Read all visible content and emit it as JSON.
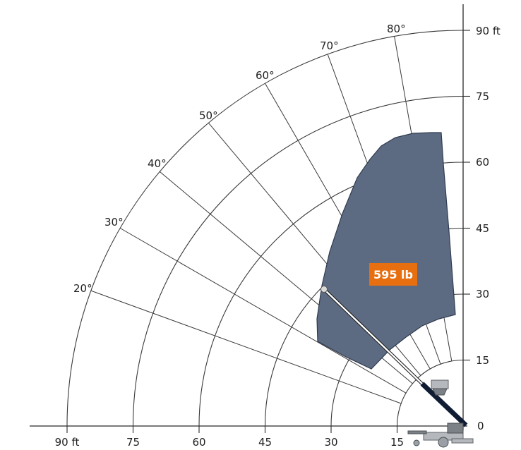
{
  "diagram": {
    "load_label": "595 lb",
    "radius_unit_label": "90 ft",
    "height_unit_label": "90 ft",
    "horizontal_labels": [
      "90 ft",
      "75",
      "60",
      "45",
      "30",
      "15"
    ],
    "vertical_labels": [
      "0",
      "15",
      "30",
      "45",
      "60",
      "75",
      "90 ft"
    ],
    "angle_labels": [
      "20°",
      "30°",
      "40°",
      "50°",
      "60°",
      "70°",
      "80°"
    ],
    "colors": {
      "work_zone": "#5d6b82",
      "badge": "#e86f10",
      "grid": "#3a3a3a",
      "boom_base": "#0f1c33"
    },
    "icons": [
      "lift-machine-icon",
      "platform-basket-icon"
    ]
  }
}
